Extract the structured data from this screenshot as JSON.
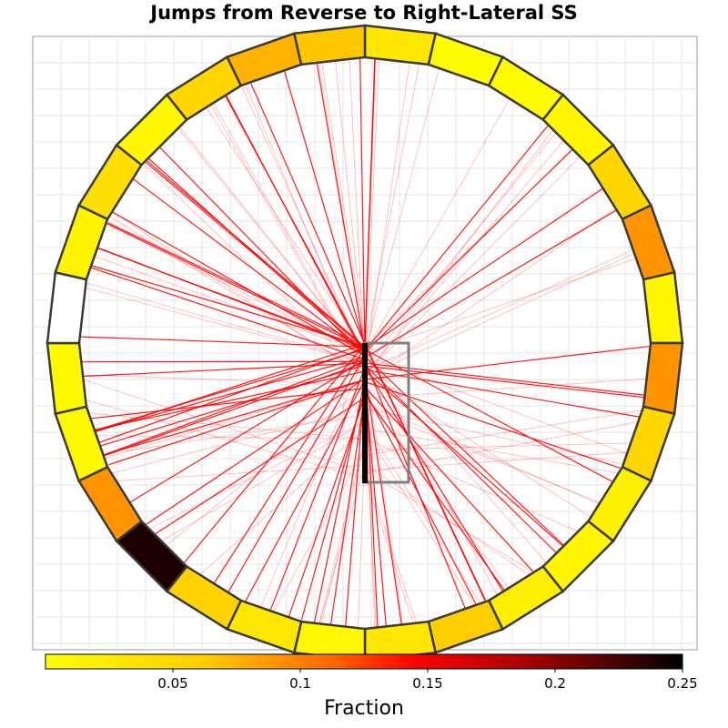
{
  "chart_data": {
    "type": "chord-wheel",
    "title": "Jumps from Reverse to Right-Lateral SS",
    "colorbar": {
      "label": "Fraction",
      "min": 0.0,
      "max": 0.25,
      "ticks": [
        0.05,
        0.1,
        0.15,
        0.2,
        0.25
      ],
      "tick_labels": [
        "0.05",
        "0.1",
        "0.15",
        "0.2",
        "0.25"
      ],
      "colormap": [
        "#ffff00",
        "#ff9900",
        "#ff1a00",
        "#990000",
        "#000000"
      ]
    },
    "wheel_segments": {
      "count": 28,
      "fractions": [
        0.03,
        0.002,
        0.002,
        0.01,
        0.05,
        0.09,
        0.01,
        0.09,
        0.05,
        0.02,
        0.01,
        0.02,
        0.06,
        0.03,
        0.008,
        0.03,
        0.055,
        0.24,
        0.09,
        0.006,
        0.007,
        0.0,
        0.015,
        0.04,
        0.01,
        0.05,
        0.075,
        0.065
      ],
      "note": "0 = white (no jumps)"
    },
    "source_fault": {
      "type": "reverse",
      "trace_color": "#000000",
      "outline_color": "#808080"
    },
    "jump_lines": {
      "color": "#ff0000",
      "count_strong": 70,
      "count_faint": 75
    },
    "grid": true
  }
}
